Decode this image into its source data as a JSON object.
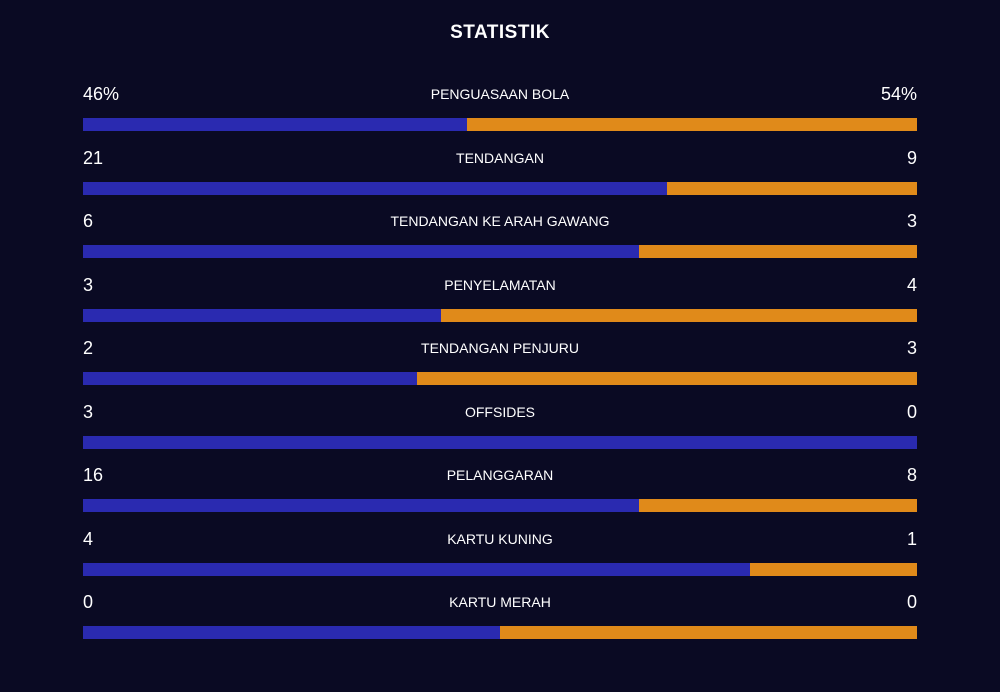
{
  "title": "STATISTIK",
  "colors": {
    "background": "#0a0a23",
    "home_bar": "#2a2ab0",
    "away_bar": "#e08a1a"
  },
  "stats": [
    {
      "label": "PENGUASAAN BOLA",
      "home": "46%",
      "away": "54%",
      "home_share": 0.46
    },
    {
      "label": "TENDANGAN",
      "home": "21",
      "away": "9",
      "home_share": 0.7
    },
    {
      "label": "TENDANGAN KE ARAH GAWANG",
      "home": "6",
      "away": "3",
      "home_share": 0.667
    },
    {
      "label": "PENYELAMATAN",
      "home": "3",
      "away": "4",
      "home_share": 0.429
    },
    {
      "label": "TENDANGAN PENJURU",
      "home": "2",
      "away": "3",
      "home_share": 0.4
    },
    {
      "label": "OFFSIDES",
      "home": "3",
      "away": "0",
      "home_share": 1.0
    },
    {
      "label": "PELANGGARAN",
      "home": "16",
      "away": "8",
      "home_share": 0.667
    },
    {
      "label": "KARTU KUNING",
      "home": "4",
      "away": "1",
      "home_share": 0.8
    },
    {
      "label": "KARTU MERAH",
      "home": "0",
      "away": "0",
      "home_share": 0.5
    }
  ]
}
